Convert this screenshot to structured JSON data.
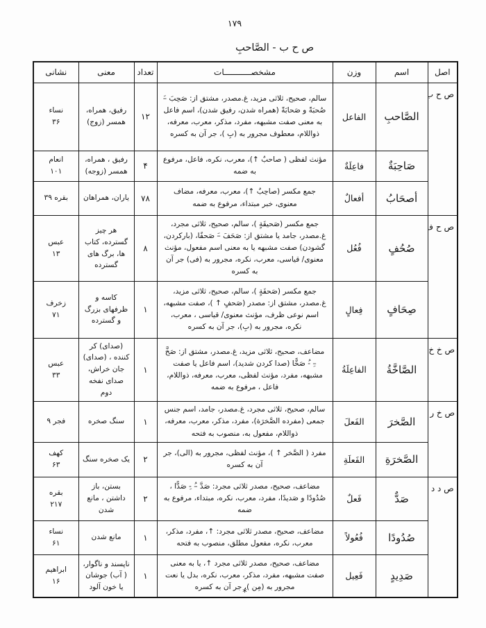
{
  "page": {
    "number": "۱۷۹",
    "title": "ص ح ب - الصَّاحبِ",
    "footer_mark": "*"
  },
  "table": {
    "headers": {
      "root": "اصل",
      "noun": "اسم",
      "pattern": "وزن",
      "characteristics": "مشخصـــــــــــات",
      "count": "تعداد",
      "meaning": "معنی",
      "reference": "نشانی"
    },
    "rows": [
      {
        "root": {
          "text": "ص ح ب",
          "rowspan": 3
        },
        "noun": "الصَّاحبِ",
        "pattern": "الفاعل",
        "characteristics": "سالم، صحیح، ثلاثی مزید، غ.مصدر، مشتق از: صَحِبَ –َ صُحبَةً و صَحابَةً (همراه شدن، رفیق شدن)، اسم فاعل به معنی صفت مشبهه، مفرد، مذکر، معرب، معرفه، ذواللام، معطوف مجرور به (بِ )، جر آن به کسره",
        "count": "۱۲",
        "meaning": "رفیق، همراه، همسر (زوج)",
        "reference": "نساء\n۳۶"
      },
      {
        "root": null,
        "noun": "صَاحِبَةٌ",
        "pattern": "فاعِلَةٌ",
        "characteristics": "مؤنث لفظی ( صاحبٌ ↑)، معرب، نکره، فاعل، مرفوع به ضمه",
        "count": "۴",
        "meaning": "رفیق ، همراه، همسر (زوجه)",
        "reference": "انعام\n۱۰۱"
      },
      {
        "root": null,
        "noun": "أصحَابُ",
        "pattern": "أفعالٌ",
        "characteristics": "جمع مکسر (صاحِبٌ ↑)، معرب، معرفه، مضاف معنوی، خبر مبتداء، مرفوع به ضمه",
        "count": "۷۸",
        "meaning": "یاران، همراهان",
        "reference": "بقره ۳۹"
      },
      {
        "root": {
          "text": "ص ح ف",
          "rowspan": 2
        },
        "noun": "صُحُفٍ",
        "pattern": "فُعُل",
        "characteristics": "جمع مکسر (صَحیفَةٍ )، سالم، صحیح، ثلاثی مجرد، غ.مصدر، جامد یا مشتق از: صَحَفَ –َ صَحفًا، (بارکردن، گشودن) صفت مشبهه یا به معنی اسم مفعول، مؤنث معنوی/ قیاسی، معرب، نکره، مجرور به (فی) جر آن به کسره",
        "count": "۸",
        "meaning": "هر چیز گسترده، کتاب ها، برگ های گسترده",
        "reference": "عبس\n۱۳"
      },
      {
        "root": null,
        "noun": "صِحَافٍ",
        "pattern": "فِعالٍ",
        "characteristics": "جمع مکسر (صَحفَةٍ )، سالم، صحیح، ثلاثی مزید، غ.مصدر، مشتق از: مصدر (صَحفٍ ↑ )، صفت مشبهه، اسم نوعی ظرف، مؤنث معنوی/ قیاسی ، معرب، نکره، مجرور به (بِ)، جر آن به کسره",
        "count": "۱",
        "meaning": "کاسه و ظرفهای بزرگ و گسترده",
        "reference": "زخرف\n۷۱"
      },
      {
        "root": {
          "text": "ص خ خ",
          "rowspan": 1
        },
        "noun": "الصَّاخَّةُ",
        "pattern": "الفاعِلَةُ",
        "characteristics": "مضاعف، صحیح، ثلاثی مزید، غ.مصدر، مشتق از: صَخَّ –ِ -ُ صَخًّا (صدا کردن شدید)، اسم فاعل یا صفت مشبهه، مفرد، مؤنث لفظی، معرب، معرفه، ذواللام، فاعل ، مرفوع به ضمه",
        "count": "۱",
        "meaning": "(صدای) کر کننده ، (صدای) جان خراش، صدای نفخه دوم",
        "reference": "عبس\n۳۳"
      },
      {
        "root": {
          "text": "ص خ ر",
          "rowspan": 2
        },
        "noun": "الصَّخرَ",
        "pattern": "الفَعلَ",
        "characteristics": "سالم، صحیح، ثلاثی مجرد، غ.مصدر، جامد، اسم جنس جمعی (مفرده الصَّخرَة)، مفرد، مذکر، معرب، معرفه، ذواللام، مفعول به، منصوب به فتحه",
        "count": "۱",
        "meaning": "سنگ صخره",
        "reference": "فجر ۹"
      },
      {
        "root": null,
        "noun": "الصَّخرَةِ",
        "pattern": "الفَعلَةِ",
        "characteristics": "مفرد ( الصَّخر ↑ )، مؤنث لفظی، مجرور به (الی)، جر آن به کسره",
        "count": "۲",
        "meaning": "یک صخره سنگ",
        "reference": "کهف\n۶۳"
      },
      {
        "root": {
          "text": "ص د د",
          "rowspan": 3
        },
        "noun": "صَدٌّ",
        "pattern": "فَعلٌ",
        "characteristics": "مضاعف، صحیح، مصدر ثلاثی مجرد: صَدَّ –ُ -ِ صَدًّا ، صُدُودًا و صَدیدًا، مفرد، معرب، نکره، مبتداء، مرفوع به ضمه",
        "count": "۲",
        "meaning": "بستن، باز داشتن ، مانع شدن",
        "reference": "بقره\n۲۱۷"
      },
      {
        "root": null,
        "noun": "صُدُودًا",
        "pattern": "فُعُولاً",
        "characteristics": "مضاعف، صحیح، مصدر ثلاثی مجرد: ↑، مفرد، مذکر، معرب، نکره، مفعول مطلق، منصوب به فتحه",
        "count": "۱",
        "meaning": "مانع شدن",
        "reference": "نساء\n۶۱"
      },
      {
        "root": null,
        "noun": "صَدِيدٍ",
        "pattern": "فَعِیل",
        "characteristics": "مضاعف، صحیح، مصدر ثلاثی مجرد ↑، یا به معنی صفت مشبهه، مفرد، مذکر، معرب، نکره، بدل یا نعت مجرور به (مِن )، جر آن به کسره",
        "count": "۱",
        "meaning": "ناپسند و ناگوار، ( آب) جوشان یا خون آلود",
        "reference": "ابراهیم\n۱۶"
      }
    ]
  }
}
